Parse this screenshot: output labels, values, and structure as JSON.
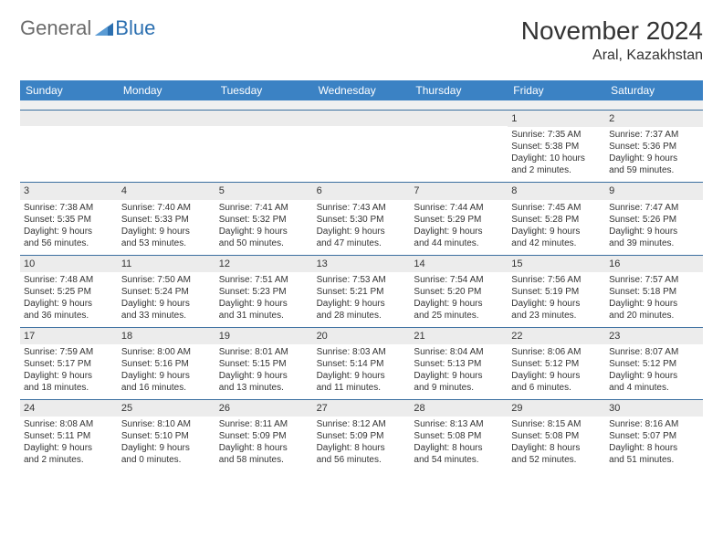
{
  "logo": {
    "general": "General",
    "blue": "Blue"
  },
  "title": "November 2024",
  "location": "Aral, Kazakhstan",
  "dayHeaders": [
    "Sunday",
    "Monday",
    "Tuesday",
    "Wednesday",
    "Thursday",
    "Friday",
    "Saturday"
  ],
  "colors": {
    "headerBg": "#3b82c4",
    "headerText": "#ffffff",
    "dayNumBg": "#ececec",
    "rowBorder": "#3b6fa0",
    "textColor": "#333333",
    "logoGray": "#6b6b6b",
    "logoBlue": "#2b6fb0",
    "background": "#ffffff"
  },
  "weeks": [
    [
      null,
      null,
      null,
      null,
      null,
      {
        "n": "1",
        "sr": "Sunrise: 7:35 AM",
        "ss": "Sunset: 5:38 PM",
        "d1": "Daylight: 10 hours",
        "d2": "and 2 minutes."
      },
      {
        "n": "2",
        "sr": "Sunrise: 7:37 AM",
        "ss": "Sunset: 5:36 PM",
        "d1": "Daylight: 9 hours",
        "d2": "and 59 minutes."
      }
    ],
    [
      {
        "n": "3",
        "sr": "Sunrise: 7:38 AM",
        "ss": "Sunset: 5:35 PM",
        "d1": "Daylight: 9 hours",
        "d2": "and 56 minutes."
      },
      {
        "n": "4",
        "sr": "Sunrise: 7:40 AM",
        "ss": "Sunset: 5:33 PM",
        "d1": "Daylight: 9 hours",
        "d2": "and 53 minutes."
      },
      {
        "n": "5",
        "sr": "Sunrise: 7:41 AM",
        "ss": "Sunset: 5:32 PM",
        "d1": "Daylight: 9 hours",
        "d2": "and 50 minutes."
      },
      {
        "n": "6",
        "sr": "Sunrise: 7:43 AM",
        "ss": "Sunset: 5:30 PM",
        "d1": "Daylight: 9 hours",
        "d2": "and 47 minutes."
      },
      {
        "n": "7",
        "sr": "Sunrise: 7:44 AM",
        "ss": "Sunset: 5:29 PM",
        "d1": "Daylight: 9 hours",
        "d2": "and 44 minutes."
      },
      {
        "n": "8",
        "sr": "Sunrise: 7:45 AM",
        "ss": "Sunset: 5:28 PM",
        "d1": "Daylight: 9 hours",
        "d2": "and 42 minutes."
      },
      {
        "n": "9",
        "sr": "Sunrise: 7:47 AM",
        "ss": "Sunset: 5:26 PM",
        "d1": "Daylight: 9 hours",
        "d2": "and 39 minutes."
      }
    ],
    [
      {
        "n": "10",
        "sr": "Sunrise: 7:48 AM",
        "ss": "Sunset: 5:25 PM",
        "d1": "Daylight: 9 hours",
        "d2": "and 36 minutes."
      },
      {
        "n": "11",
        "sr": "Sunrise: 7:50 AM",
        "ss": "Sunset: 5:24 PM",
        "d1": "Daylight: 9 hours",
        "d2": "and 33 minutes."
      },
      {
        "n": "12",
        "sr": "Sunrise: 7:51 AM",
        "ss": "Sunset: 5:23 PM",
        "d1": "Daylight: 9 hours",
        "d2": "and 31 minutes."
      },
      {
        "n": "13",
        "sr": "Sunrise: 7:53 AM",
        "ss": "Sunset: 5:21 PM",
        "d1": "Daylight: 9 hours",
        "d2": "and 28 minutes."
      },
      {
        "n": "14",
        "sr": "Sunrise: 7:54 AM",
        "ss": "Sunset: 5:20 PM",
        "d1": "Daylight: 9 hours",
        "d2": "and 25 minutes."
      },
      {
        "n": "15",
        "sr": "Sunrise: 7:56 AM",
        "ss": "Sunset: 5:19 PM",
        "d1": "Daylight: 9 hours",
        "d2": "and 23 minutes."
      },
      {
        "n": "16",
        "sr": "Sunrise: 7:57 AM",
        "ss": "Sunset: 5:18 PM",
        "d1": "Daylight: 9 hours",
        "d2": "and 20 minutes."
      }
    ],
    [
      {
        "n": "17",
        "sr": "Sunrise: 7:59 AM",
        "ss": "Sunset: 5:17 PM",
        "d1": "Daylight: 9 hours",
        "d2": "and 18 minutes."
      },
      {
        "n": "18",
        "sr": "Sunrise: 8:00 AM",
        "ss": "Sunset: 5:16 PM",
        "d1": "Daylight: 9 hours",
        "d2": "and 16 minutes."
      },
      {
        "n": "19",
        "sr": "Sunrise: 8:01 AM",
        "ss": "Sunset: 5:15 PM",
        "d1": "Daylight: 9 hours",
        "d2": "and 13 minutes."
      },
      {
        "n": "20",
        "sr": "Sunrise: 8:03 AM",
        "ss": "Sunset: 5:14 PM",
        "d1": "Daylight: 9 hours",
        "d2": "and 11 minutes."
      },
      {
        "n": "21",
        "sr": "Sunrise: 8:04 AM",
        "ss": "Sunset: 5:13 PM",
        "d1": "Daylight: 9 hours",
        "d2": "and 9 minutes."
      },
      {
        "n": "22",
        "sr": "Sunrise: 8:06 AM",
        "ss": "Sunset: 5:12 PM",
        "d1": "Daylight: 9 hours",
        "d2": "and 6 minutes."
      },
      {
        "n": "23",
        "sr": "Sunrise: 8:07 AM",
        "ss": "Sunset: 5:12 PM",
        "d1": "Daylight: 9 hours",
        "d2": "and 4 minutes."
      }
    ],
    [
      {
        "n": "24",
        "sr": "Sunrise: 8:08 AM",
        "ss": "Sunset: 5:11 PM",
        "d1": "Daylight: 9 hours",
        "d2": "and 2 minutes."
      },
      {
        "n": "25",
        "sr": "Sunrise: 8:10 AM",
        "ss": "Sunset: 5:10 PM",
        "d1": "Daylight: 9 hours",
        "d2": "and 0 minutes."
      },
      {
        "n": "26",
        "sr": "Sunrise: 8:11 AM",
        "ss": "Sunset: 5:09 PM",
        "d1": "Daylight: 8 hours",
        "d2": "and 58 minutes."
      },
      {
        "n": "27",
        "sr": "Sunrise: 8:12 AM",
        "ss": "Sunset: 5:09 PM",
        "d1": "Daylight: 8 hours",
        "d2": "and 56 minutes."
      },
      {
        "n": "28",
        "sr": "Sunrise: 8:13 AM",
        "ss": "Sunset: 5:08 PM",
        "d1": "Daylight: 8 hours",
        "d2": "and 54 minutes."
      },
      {
        "n": "29",
        "sr": "Sunrise: 8:15 AM",
        "ss": "Sunset: 5:08 PM",
        "d1": "Daylight: 8 hours",
        "d2": "and 52 minutes."
      },
      {
        "n": "30",
        "sr": "Sunrise: 8:16 AM",
        "ss": "Sunset: 5:07 PM",
        "d1": "Daylight: 8 hours",
        "d2": "and 51 minutes."
      }
    ]
  ]
}
